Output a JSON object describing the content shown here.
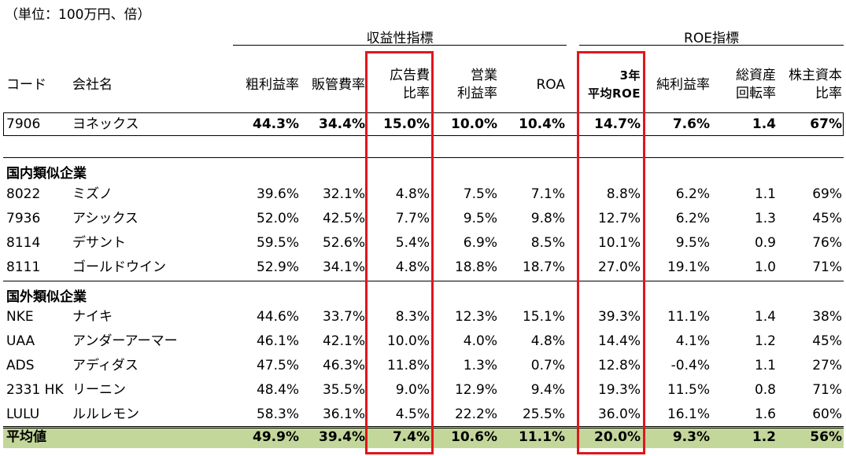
{
  "unit_note": "（単位：100万円、倍）",
  "groups": {
    "profitability": "収益性指標",
    "roe": "ROE指標"
  },
  "headers": {
    "code": "コード",
    "company": "会社名",
    "gross_margin": "粗利益率",
    "sga_ratio": "販管費率",
    "ad_ratio_1": "広告費",
    "ad_ratio_2": "比率",
    "op_margin_1": "営業",
    "op_margin_2": "利益率",
    "roa": "ROA",
    "avg_roe_1": "3年",
    "avg_roe_2": "平均ROE",
    "net_margin": "純利益率",
    "asset_turn_1": "総資産",
    "asset_turn_2": "回転率",
    "equity_ratio_1": "株主資本",
    "equity_ratio_2": "比率"
  },
  "target": {
    "code": "7906",
    "name": "ヨネックス",
    "gross": "44.3%",
    "sga": "34.4%",
    "ad": "15.0%",
    "op": "10.0%",
    "roa": "10.4%",
    "roe3": "14.7%",
    "net": "7.6%",
    "turn": "1.4",
    "equity": "67%"
  },
  "sections": {
    "domestic": "国内類似企業",
    "foreign": "国外類似企業"
  },
  "domestic": [
    {
      "code": "8022",
      "name": "ミズノ",
      "gross": "39.6%",
      "sga": "32.1%",
      "ad": "4.8%",
      "op": "7.5%",
      "roa": "7.1%",
      "roe3": "8.8%",
      "net": "6.2%",
      "turn": "1.1",
      "equity": "69%"
    },
    {
      "code": "7936",
      "name": "アシックス",
      "gross": "52.0%",
      "sga": "42.5%",
      "ad": "7.7%",
      "op": "9.5%",
      "roa": "9.8%",
      "roe3": "12.7%",
      "net": "6.2%",
      "turn": "1.3",
      "equity": "45%"
    },
    {
      "code": "8114",
      "name": "デサント",
      "gross": "59.5%",
      "sga": "52.6%",
      "ad": "5.4%",
      "op": "6.9%",
      "roa": "8.5%",
      "roe3": "10.1%",
      "net": "9.5%",
      "turn": "0.9",
      "equity": "76%"
    },
    {
      "code": "8111",
      "name": "ゴールドウイン",
      "gross": "52.9%",
      "sga": "34.1%",
      "ad": "4.8%",
      "op": "18.8%",
      "roa": "18.7%",
      "roe3": "27.0%",
      "net": "19.1%",
      "turn": "1.0",
      "equity": "71%"
    }
  ],
  "foreign": [
    {
      "code": "NKE",
      "name": "ナイキ",
      "gross": "44.6%",
      "sga": "33.7%",
      "ad": "8.3%",
      "op": "12.3%",
      "roa": "15.1%",
      "roe3": "39.3%",
      "net": "11.1%",
      "turn": "1.4",
      "equity": "38%"
    },
    {
      "code": "UAA",
      "name": "アンダーアーマー",
      "gross": "46.1%",
      "sga": "42.1%",
      "ad": "10.0%",
      "op": "4.0%",
      "roa": "4.8%",
      "roe3": "14.4%",
      "net": "4.1%",
      "turn": "1.2",
      "equity": "45%"
    },
    {
      "code": "ADS",
      "name": "アディダス",
      "gross": "47.5%",
      "sga": "46.3%",
      "ad": "11.8%",
      "op": "1.3%",
      "roa": "0.7%",
      "roe3": "12.8%",
      "net": "-0.4%",
      "turn": "1.1",
      "equity": "27%"
    },
    {
      "code": "2331 HK",
      "name": "リーニン",
      "gross": "48.4%",
      "sga": "35.5%",
      "ad": "9.0%",
      "op": "12.9%",
      "roa": "9.4%",
      "roe3": "19.3%",
      "net": "11.5%",
      "turn": "0.8",
      "equity": "71%"
    },
    {
      "code": "LULU",
      "name": "ルルレモン",
      "gross": "58.3%",
      "sga": "36.1%",
      "ad": "4.5%",
      "op": "22.2%",
      "roa": "25.5%",
      "roe3": "36.0%",
      "net": "16.1%",
      "turn": "1.6",
      "equity": "60%"
    }
  ],
  "average": {
    "label": "平均値",
    "gross": "49.9%",
    "sga": "39.4%",
    "ad": "7.4%",
    "op": "10.6%",
    "roa": "11.1%",
    "roe3": "20.0%",
    "net": "9.3%",
    "turn": "1.2",
    "equity": "56%"
  },
  "colors": {
    "highlight_box": "#e0161b",
    "average_row_bg": "#c4d79b"
  }
}
